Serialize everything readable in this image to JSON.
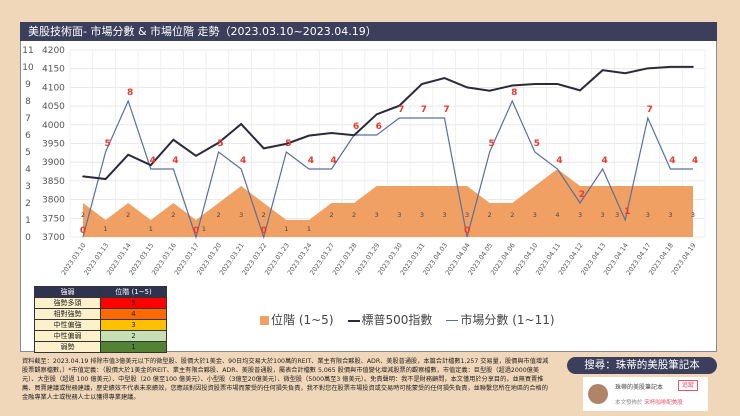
{
  "title": "美股技術面- 市場分數 & 市場位階 走勢（2023.03.10~2023.04.19）",
  "chart_data": {
    "type": "line",
    "categories": [
      "2023.03.10",
      "2023.03.13",
      "2023.03.14",
      "2023.03.15",
      "2023.03.16",
      "2023.03.17",
      "2023.03.20",
      "2023.03.21",
      "2023.03.22",
      "2023.03.23",
      "2023.03.24",
      "2023.03.27",
      "2023.03.28",
      "2023.03.29",
      "2023.03.30",
      "2023.03.31",
      "2023.04.03",
      "2023.04.04",
      "2023.04.05",
      "2023.04.06",
      "2023.04.10",
      "2023.04.11",
      "2023.04.12",
      "2023.04.13",
      "2023.04.14",
      "2023.04.17",
      "2023.04.18",
      "2023.04.19"
    ],
    "series": [
      {
        "name": "位階 (1~5)",
        "type": "area",
        "axis": "left",
        "color": "#f0a062",
        "values": [
          2,
          1,
          2,
          1,
          2,
          1,
          2,
          3,
          2,
          1,
          1,
          2,
          2,
          3,
          3,
          3,
          3,
          3,
          2,
          2,
          3,
          4,
          3,
          3,
          3,
          3,
          3,
          3
        ]
      },
      {
        "name": "標普500指數",
        "type": "line",
        "axis": "right",
        "color": "#2a2a3a",
        "values": [
          3862,
          3855,
          3920,
          3892,
          3960,
          3917,
          3952,
          4002,
          3937,
          3949,
          3971,
          3978,
          3972,
          4028,
          4051,
          4109,
          4125,
          4100,
          4091,
          4105,
          4109,
          4109,
          4092,
          4146,
          4138,
          4151,
          4155,
          4155
        ]
      },
      {
        "name": "市場分數 (1~11)",
        "type": "line",
        "axis": "left",
        "color": "#5a6fa0",
        "values": [
          0,
          5,
          8,
          4,
          4,
          0,
          5,
          4,
          0,
          5,
          4,
          4,
          6,
          6,
          7,
          7,
          7,
          0,
          5,
          8,
          5,
          4,
          2,
          4,
          1,
          7,
          4,
          4
        ]
      }
    ],
    "left_axis": {
      "range": [
        0,
        11
      ],
      "ticks": [
        "0",
        "1",
        "2",
        "3",
        "4",
        "5",
        "6",
        "7",
        "8",
        "9",
        "10",
        "11"
      ]
    },
    "right_axis": {
      "range": [
        3700,
        4200
      ],
      "ticks": [
        "3700",
        "3750",
        "3800",
        "3850",
        "3900",
        "3950",
        "4000",
        "4050",
        "4100",
        "4150",
        "4200"
      ]
    },
    "grid": true,
    "legend_placement": "bottom",
    "label_color": "#e8392f"
  },
  "strength_table": {
    "headers": [
      "強弱",
      "位階 (1~5)"
    ],
    "rows": [
      {
        "label": "強勢多頭",
        "value": "5",
        "color": "#ff0000"
      },
      {
        "label": "相對強勢",
        "value": "4",
        "color": "#ff6a00"
      },
      {
        "label": "中性偏強",
        "value": "3",
        "color": "#ffc000"
      },
      {
        "label": "中性偏弱",
        "value": "2",
        "color": "#c6e0b4"
      },
      {
        "label": "弱勢",
        "value": "1",
        "color": "#548235"
      }
    ]
  },
  "footer_text": "資料截至：2023.04.19 排除市值3億美元以下的微型股、股價大於1美金、90日均交易大於100萬的REIT、業主有限合夥股、ADR、美股普通股，本篇合計檔數1,257 交易量，股價與市值增減股票觀察檔數，）*市值定義：（股價大於1美金的REIT、業主有限合夥股、ADR、美股普通股，屬表合計檔數 5,065 股價與市值變化增減股票的觀察檔數，市值定義：巨型股（超過2000億美元）、大型股（超過 100 億美元）、中型股（20 億至100 億美元）、小型股（3億至20億美元）、微型股（5000萬至3 億美元）。免責聲明：我不是財務顧問，本文僅用於分享目的，並無買賣推薦、買賣建議或稅務建議，歷史績效不代表未來績效，您應該對因投資股票市場而蒙受的任何損失負責，我不對您在股票市場投資或交易時可能蒙受的任何損失負責，並聯繫您所在地區的合格的金融專業人士或稅務人士以獲得專業建議。",
  "search_badge": "搜尋：珠蒂的美股筆記本",
  "card": {
    "name": "珠蒂的美股筆記本",
    "follow": "追蹤",
    "published_prefix": "本文發佈於",
    "published_in": "宋杯咖啡配美股"
  }
}
